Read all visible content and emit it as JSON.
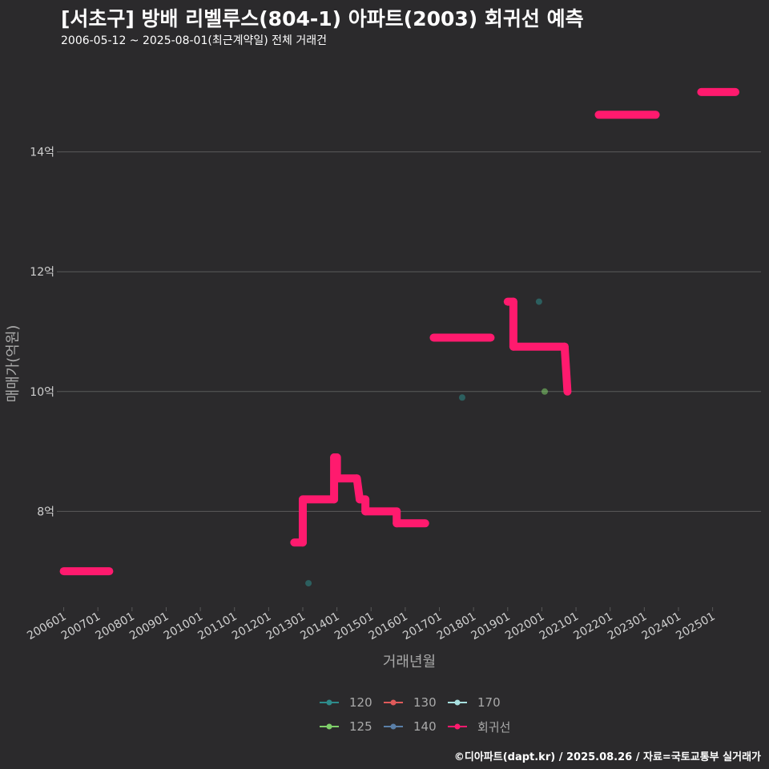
{
  "title": "[서초구] 방배 리벨루스(804-1) 아파트(2003) 회귀선 예측",
  "subtitle": "2006-05-12 ~ 2025-08-01(최근계약일) 전체 거래건",
  "footer": "©디아파트(dapt.kr) / 2025.08.26 / 자료=국토교통부 실거래가",
  "colors": {
    "background": "#2b2a2c",
    "grid": "#5a5a5a",
    "regression": "#ff1a6e",
    "s120": "#2e8b8b",
    "s125": "#7fcf6a",
    "s130": "#e05a5a",
    "s140": "#5a7fa8",
    "s170": "#a8e0e0"
  },
  "legend": [
    {
      "label": "120",
      "color": "#2e8b8b"
    },
    {
      "label": "130",
      "color": "#e05a5a"
    },
    {
      "label": "170",
      "color": "#a8e0e0"
    },
    {
      "label": "125",
      "color": "#7fcf6a"
    },
    {
      "label": "140",
      "color": "#5a7fa8"
    },
    {
      "label": "회귀선",
      "color": "#ff1a6e"
    }
  ],
  "chart_data": {
    "type": "line",
    "title": "[서초구] 방배 리벨루스(804-1) 아파트(2003) 회귀선 예측",
    "subtitle": "2006-05-12 ~ 2025-08-01(최근계약일) 전체 거래건",
    "xlabel": "거래년월",
    "ylabel": "매매가(억원)",
    "xlim": [
      "2005-12",
      "2026-06"
    ],
    "ylim": [
      6.4,
      15.6
    ],
    "x_ticks": [
      "200601",
      "200701",
      "200801",
      "200901",
      "201001",
      "201101",
      "201201",
      "201301",
      "201401",
      "201501",
      "201601",
      "201701",
      "201801",
      "201901",
      "202001",
      "202101",
      "202201",
      "202301",
      "202401",
      "202501"
    ],
    "y_ticks": [
      8,
      10,
      12,
      14
    ],
    "y_tick_labels": [
      "8억",
      "10억",
      "12억",
      "14억"
    ],
    "grid": true,
    "legend_position": "bottom",
    "regression_segments": [
      {
        "x": [
          "2006-01",
          "2007-05"
        ],
        "y": [
          7.0,
          7.0
        ]
      },
      {
        "x": [
          "2012-10",
          "2013-01"
        ],
        "y": [
          7.48,
          7.48
        ]
      },
      {
        "x": [
          "2013-01",
          "2013-01"
        ],
        "y": [
          7.48,
          8.2
        ]
      },
      {
        "x": [
          "2013-01",
          "2013-12"
        ],
        "y": [
          8.2,
          8.2
        ]
      },
      {
        "x": [
          "2013-12",
          "2013-12"
        ],
        "y": [
          8.2,
          8.9
        ]
      },
      {
        "x": [
          "2013-12",
          "2014-01"
        ],
        "y": [
          8.9,
          8.9
        ]
      },
      {
        "x": [
          "2014-01",
          "2014-01"
        ],
        "y": [
          8.9,
          8.55
        ]
      },
      {
        "x": [
          "2014-01",
          "2014-08"
        ],
        "y": [
          8.55,
          8.55
        ]
      },
      {
        "x": [
          "2014-08",
          "2014-09"
        ],
        "y": [
          8.55,
          8.2
        ]
      },
      {
        "x": [
          "2014-09",
          "2014-11"
        ],
        "y": [
          8.2,
          8.2
        ]
      },
      {
        "x": [
          "2014-11",
          "2014-11"
        ],
        "y": [
          8.2,
          8.0
        ]
      },
      {
        "x": [
          "2014-11",
          "2015-10"
        ],
        "y": [
          8.0,
          8.0
        ]
      },
      {
        "x": [
          "2015-10",
          "2015-10"
        ],
        "y": [
          8.0,
          7.8
        ]
      },
      {
        "x": [
          "2015-10",
          "2016-08"
        ],
        "y": [
          7.8,
          7.8
        ]
      },
      {
        "x": [
          "2016-11",
          "2018-07"
        ],
        "y": [
          10.9,
          10.9
        ]
      },
      {
        "x": [
          "2019-01",
          "2019-03"
        ],
        "y": [
          11.5,
          11.5
        ]
      },
      {
        "x": [
          "2019-03",
          "2019-03"
        ],
        "y": [
          11.5,
          10.75
        ]
      },
      {
        "x": [
          "2019-03",
          "2020-09"
        ],
        "y": [
          10.75,
          10.75
        ]
      },
      {
        "x": [
          "2020-09",
          "2020-10"
        ],
        "y": [
          10.75,
          10.0
        ]
      },
      {
        "x": [
          "2021-09",
          "2023-05"
        ],
        "y": [
          14.62,
          14.62
        ]
      },
      {
        "x": [
          "2024-09",
          "2025-09"
        ],
        "y": [
          15.0,
          15.0
        ]
      }
    ],
    "series": [
      {
        "name": "120",
        "points": [
          {
            "x": "2013-03",
            "y": 6.8
          },
          {
            "x": "2017-09",
            "y": 9.9
          },
          {
            "x": "2019-12",
            "y": 11.5
          }
        ]
      },
      {
        "name": "125",
        "points": [
          {
            "x": "2020-02",
            "y": 10.0
          }
        ]
      },
      {
        "name": "130",
        "points": []
      },
      {
        "name": "140",
        "points": []
      },
      {
        "name": "170",
        "points": []
      }
    ]
  }
}
